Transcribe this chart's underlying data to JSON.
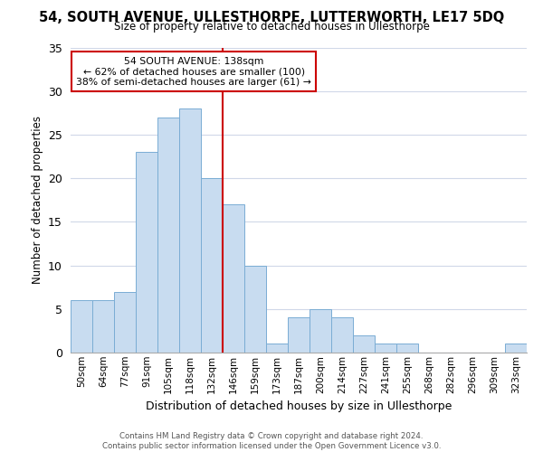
{
  "title": "54, SOUTH AVENUE, ULLESTHORPE, LUTTERWORTH, LE17 5DQ",
  "subtitle": "Size of property relative to detached houses in Ullesthorpe",
  "xlabel": "Distribution of detached houses by size in Ullesthorpe",
  "ylabel": "Number of detached properties",
  "footer_lines": [
    "Contains HM Land Registry data © Crown copyright and database right 2024.",
    "Contains public sector information licensed under the Open Government Licence v3.0."
  ],
  "bar_labels": [
    "50sqm",
    "64sqm",
    "77sqm",
    "91sqm",
    "105sqm",
    "118sqm",
    "132sqm",
    "146sqm",
    "159sqm",
    "173sqm",
    "187sqm",
    "200sqm",
    "214sqm",
    "227sqm",
    "241sqm",
    "255sqm",
    "268sqm",
    "282sqm",
    "296sqm",
    "309sqm",
    "323sqm"
  ],
  "bar_heights": [
    6,
    6,
    7,
    23,
    27,
    28,
    20,
    17,
    10,
    1,
    4,
    5,
    4,
    2,
    1,
    1,
    0,
    0,
    0,
    0,
    1
  ],
  "bar_color": "#c8dcf0",
  "bar_edge_color": "#7aadd4",
  "vline_color": "#cc0000",
  "ylim": [
    0,
    35
  ],
  "yticks": [
    0,
    5,
    10,
    15,
    20,
    25,
    30,
    35
  ],
  "annotation_title": "54 SOUTH AVENUE: 138sqm",
  "annotation_line1": "← 62% of detached houses are smaller (100)",
  "annotation_line2": "38% of semi-detached houses are larger (61) →",
  "annotation_box_color": "#ffffff",
  "annotation_box_edgecolor": "#cc0000",
  "vline_bar_index": 6
}
